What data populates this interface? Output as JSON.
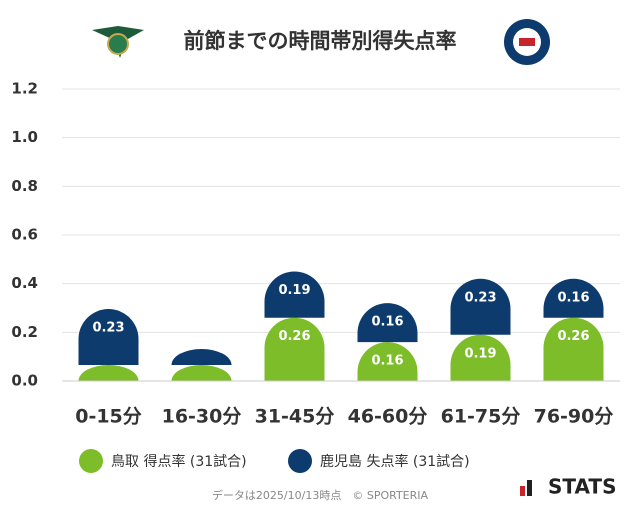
{
  "chart_data": {
    "type": "stacked_bar",
    "title": "前節までの時間帯別得失点率",
    "categories": [
      "0-15分",
      "16-30分",
      "31-45分",
      "46-60分",
      "61-75分",
      "76-90分"
    ],
    "series": [
      {
        "name": "鳥取 得点率 (31試合)",
        "color": "#7dbd2a",
        "values": [
          0,
          0,
          0.26,
          0.16,
          0.19,
          0.26
        ]
      },
      {
        "name": "鹿児島 失点率 (31試合)",
        "color": "#0d3b6e",
        "values": [
          0.23,
          0,
          0.19,
          0.16,
          0.23,
          0.16
        ]
      }
    ],
    "ylim": [
      0,
      1.2
    ],
    "yticks": [
      {
        "value": 0,
        "label": "0.0"
      },
      0.2,
      0.4,
      0.6,
      0.8,
      {
        "value": 1,
        "label": "1.0"
      },
      1.2
    ],
    "grid": true,
    "footer": "データは2025/10/13時点　© SPORTERIA",
    "brand": "STATS"
  }
}
